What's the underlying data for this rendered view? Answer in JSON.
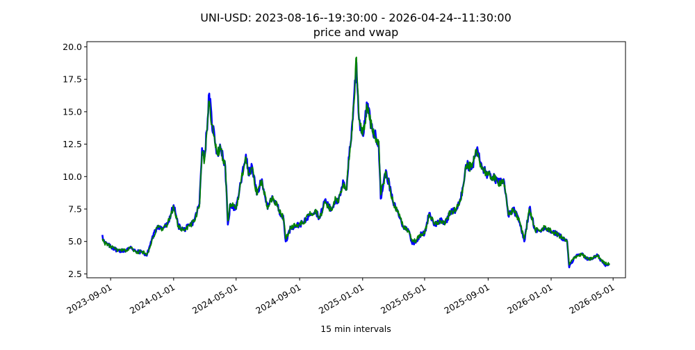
{
  "chart_data": {
    "type": "line",
    "title": "UNI-USD: 2023-08-16--19:30:00 - 2026-04-24--11:30:00",
    "subtitle": "price and vwap",
    "xlabel": "15 min intervals",
    "ylabel": "",
    "xlim": [
      "2023-07-17",
      "2026-05-25"
    ],
    "ylim": [
      2.2,
      20.4
    ],
    "grid": false,
    "x_ticks": [
      "2023-09-01",
      "2024-01-01",
      "2024-05-01",
      "2024-09-01",
      "2025-01-01",
      "2025-05-01",
      "2025-09-01",
      "2026-01-01",
      "2026-05-01"
    ],
    "y_ticks": [
      "2.5",
      "5.0",
      "7.5",
      "10.0",
      "12.5",
      "15.0",
      "17.5",
      "20.0"
    ],
    "x": [
      "2023-08-16",
      "2023-08-20",
      "2023-09-01",
      "2023-09-15",
      "2023-10-01",
      "2023-10-10",
      "2023-10-20",
      "2023-11-01",
      "2023-11-10",
      "2023-11-20",
      "2023-12-01",
      "2023-12-10",
      "2023-12-20",
      "2024-01-01",
      "2024-01-10",
      "2024-01-20",
      "2024-02-01",
      "2024-02-10",
      "2024-02-20",
      "2024-02-25",
      "2024-03-01",
      "2024-03-05",
      "2024-03-10",
      "2024-03-15",
      "2024-03-20",
      "2024-03-25",
      "2024-04-01",
      "2024-04-10",
      "2024-04-15",
      "2024-04-20",
      "2024-05-01",
      "2024-05-10",
      "2024-05-20",
      "2024-05-25",
      "2024-06-01",
      "2024-06-10",
      "2024-06-20",
      "2024-07-01",
      "2024-07-10",
      "2024-07-20",
      "2024-08-01",
      "2024-08-05",
      "2024-08-15",
      "2024-09-01",
      "2024-09-10",
      "2024-09-20",
      "2024-10-01",
      "2024-10-10",
      "2024-10-20",
      "2024-11-01",
      "2024-11-10",
      "2024-11-15",
      "2024-11-20",
      "2024-11-25",
      "2024-12-01",
      "2024-12-05",
      "2024-12-10",
      "2024-12-15",
      "2024-12-20",
      "2024-12-25",
      "2025-01-01",
      "2025-01-10",
      "2025-01-20",
      "2025-02-01",
      "2025-02-05",
      "2025-02-15",
      "2025-03-01",
      "2025-03-10",
      "2025-03-20",
      "2025-04-01",
      "2025-04-07",
      "2025-04-15",
      "2025-04-25",
      "2025-05-01",
      "2025-05-10",
      "2025-05-20",
      "2025-06-01",
      "2025-06-10",
      "2025-06-20",
      "2025-07-01",
      "2025-07-10",
      "2025-07-20",
      "2025-08-01",
      "2025-08-10",
      "2025-08-20",
      "2025-09-01",
      "2025-09-10",
      "2025-09-20",
      "2025-10-01",
      "2025-10-10",
      "2025-10-15",
      "2025-10-20",
      "2025-11-01",
      "2025-11-10",
      "2025-11-20",
      "2025-12-01",
      "2025-12-10",
      "2025-12-20",
      "2026-01-01",
      "2026-01-15",
      "2026-02-01",
      "2026-02-05",
      "2026-02-15",
      "2026-03-01",
      "2026-03-15",
      "2026-04-01",
      "2026-04-15",
      "2026-04-24"
    ],
    "series": [
      {
        "color": "#0000ff",
        "values": [
          5.5,
          4.9,
          4.6,
          4.3,
          4.3,
          4.6,
          4.2,
          4.2,
          3.9,
          5.2,
          6.2,
          6.0,
          6.3,
          7.8,
          6.2,
          5.9,
          6.2,
          6.6,
          7.9,
          12.2,
          11.5,
          13.5,
          16.4,
          14.1,
          13.2,
          11.8,
          12.2,
          10.8,
          6.3,
          7.9,
          7.5,
          9.5,
          11.7,
          10.1,
          10.8,
          8.6,
          9.8,
          7.5,
          8.5,
          7.7,
          6.7,
          5.0,
          6.1,
          6.3,
          6.5,
          7.1,
          7.4,
          6.8,
          8.2,
          7.4,
          8.3,
          8.0,
          8.8,
          9.6,
          9.0,
          11.5,
          12.9,
          15.9,
          18.8,
          14.4,
          13.2,
          15.5,
          13.5,
          12.7,
          8.3,
          10.5,
          8.0,
          7.3,
          6.2,
          5.8,
          4.8,
          5.1,
          5.6,
          5.6,
          7.2,
          6.3,
          6.6,
          6.4,
          7.3,
          7.4,
          8.2,
          10.9,
          10.7,
          12.1,
          10.7,
          10.1,
          10.0,
          9.5,
          9.8,
          7.0,
          7.2,
          7.5,
          6.5,
          5.0,
          7.6,
          5.9,
          5.8,
          6.1,
          5.8,
          5.5,
          5.0,
          3.0,
          3.8,
          4.0,
          3.6,
          3.9,
          3.2,
          3.3
        ]
      },
      {
        "color": "#008000",
        "values": [
          5.2,
          4.9,
          4.6,
          4.3,
          4.3,
          4.5,
          4.2,
          4.2,
          4.0,
          5.1,
          6.1,
          6.0,
          6.3,
          7.6,
          6.2,
          5.9,
          6.2,
          6.6,
          7.7,
          11.8,
          11.3,
          13.3,
          15.8,
          14.0,
          13.1,
          11.8,
          12.1,
          10.8,
          6.6,
          7.9,
          7.5,
          9.5,
          11.5,
          10.1,
          10.7,
          8.6,
          9.7,
          7.5,
          8.4,
          7.7,
          6.8,
          5.2,
          6.1,
          6.3,
          6.5,
          7.1,
          7.4,
          6.8,
          8.1,
          7.4,
          8.3,
          8.0,
          8.8,
          9.5,
          9.0,
          11.3,
          12.8,
          15.6,
          19.2,
          14.4,
          13.2,
          15.4,
          13.5,
          12.7,
          8.6,
          10.4,
          8.0,
          7.3,
          6.2,
          5.8,
          5.0,
          5.1,
          5.6,
          5.6,
          7.1,
          6.3,
          6.6,
          6.4,
          7.3,
          7.4,
          8.2,
          10.8,
          10.7,
          12.0,
          10.7,
          10.1,
          10.0,
          9.5,
          9.7,
          7.1,
          7.2,
          7.5,
          6.5,
          5.2,
          7.5,
          5.9,
          5.8,
          6.1,
          5.8,
          5.5,
          5.0,
          3.2,
          3.8,
          4.0,
          3.6,
          3.9,
          3.3,
          3.3
        ]
      }
    ]
  }
}
